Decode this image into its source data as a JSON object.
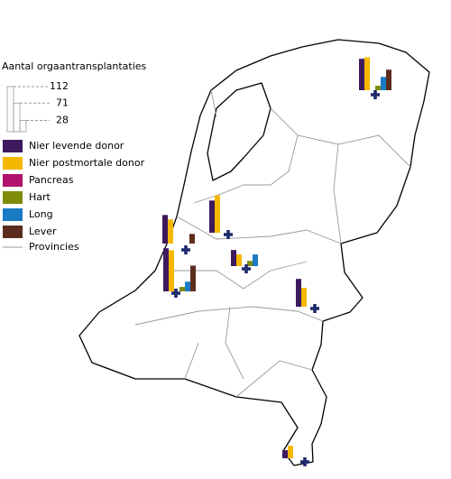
{
  "legend": {
    "title": "Aantal orgaantransplantaties",
    "scale_ticks": [
      112,
      71,
      28
    ],
    "series": [
      {
        "name": "Nier levende donor",
        "color": "#3d1a5e"
      },
      {
        "name": "Nier postmortale donor",
        "color": "#f5b800"
      },
      {
        "name": "Pancreas",
        "color": "#b0126e"
      },
      {
        "name": "Hart",
        "color": "#7f8c0a"
      },
      {
        "name": "Long",
        "color": "#1a7bc4"
      },
      {
        "name": "Lever",
        "color": "#5c2d1e"
      }
    ],
    "provinces": "Provincies"
  },
  "centers": [
    {
      "values": [
        78,
        82,
        0,
        11,
        33,
        51
      ]
    },
    {
      "values": [
        71,
        60,
        0,
        0,
        0,
        24
      ]
    },
    {
      "values": [
        80,
        93,
        0,
        0,
        0,
        0
      ]
    },
    {
      "values": [
        40,
        29,
        0,
        13,
        29,
        0
      ]
    },
    {
      "values": [
        107,
        102,
        0,
        11,
        24,
        64
      ]
    },
    {
      "values": [
        69,
        47,
        0,
        0,
        0,
        0
      ]
    },
    {
      "values": [
        20,
        31,
        0,
        0,
        0,
        0
      ]
    }
  ]
}
